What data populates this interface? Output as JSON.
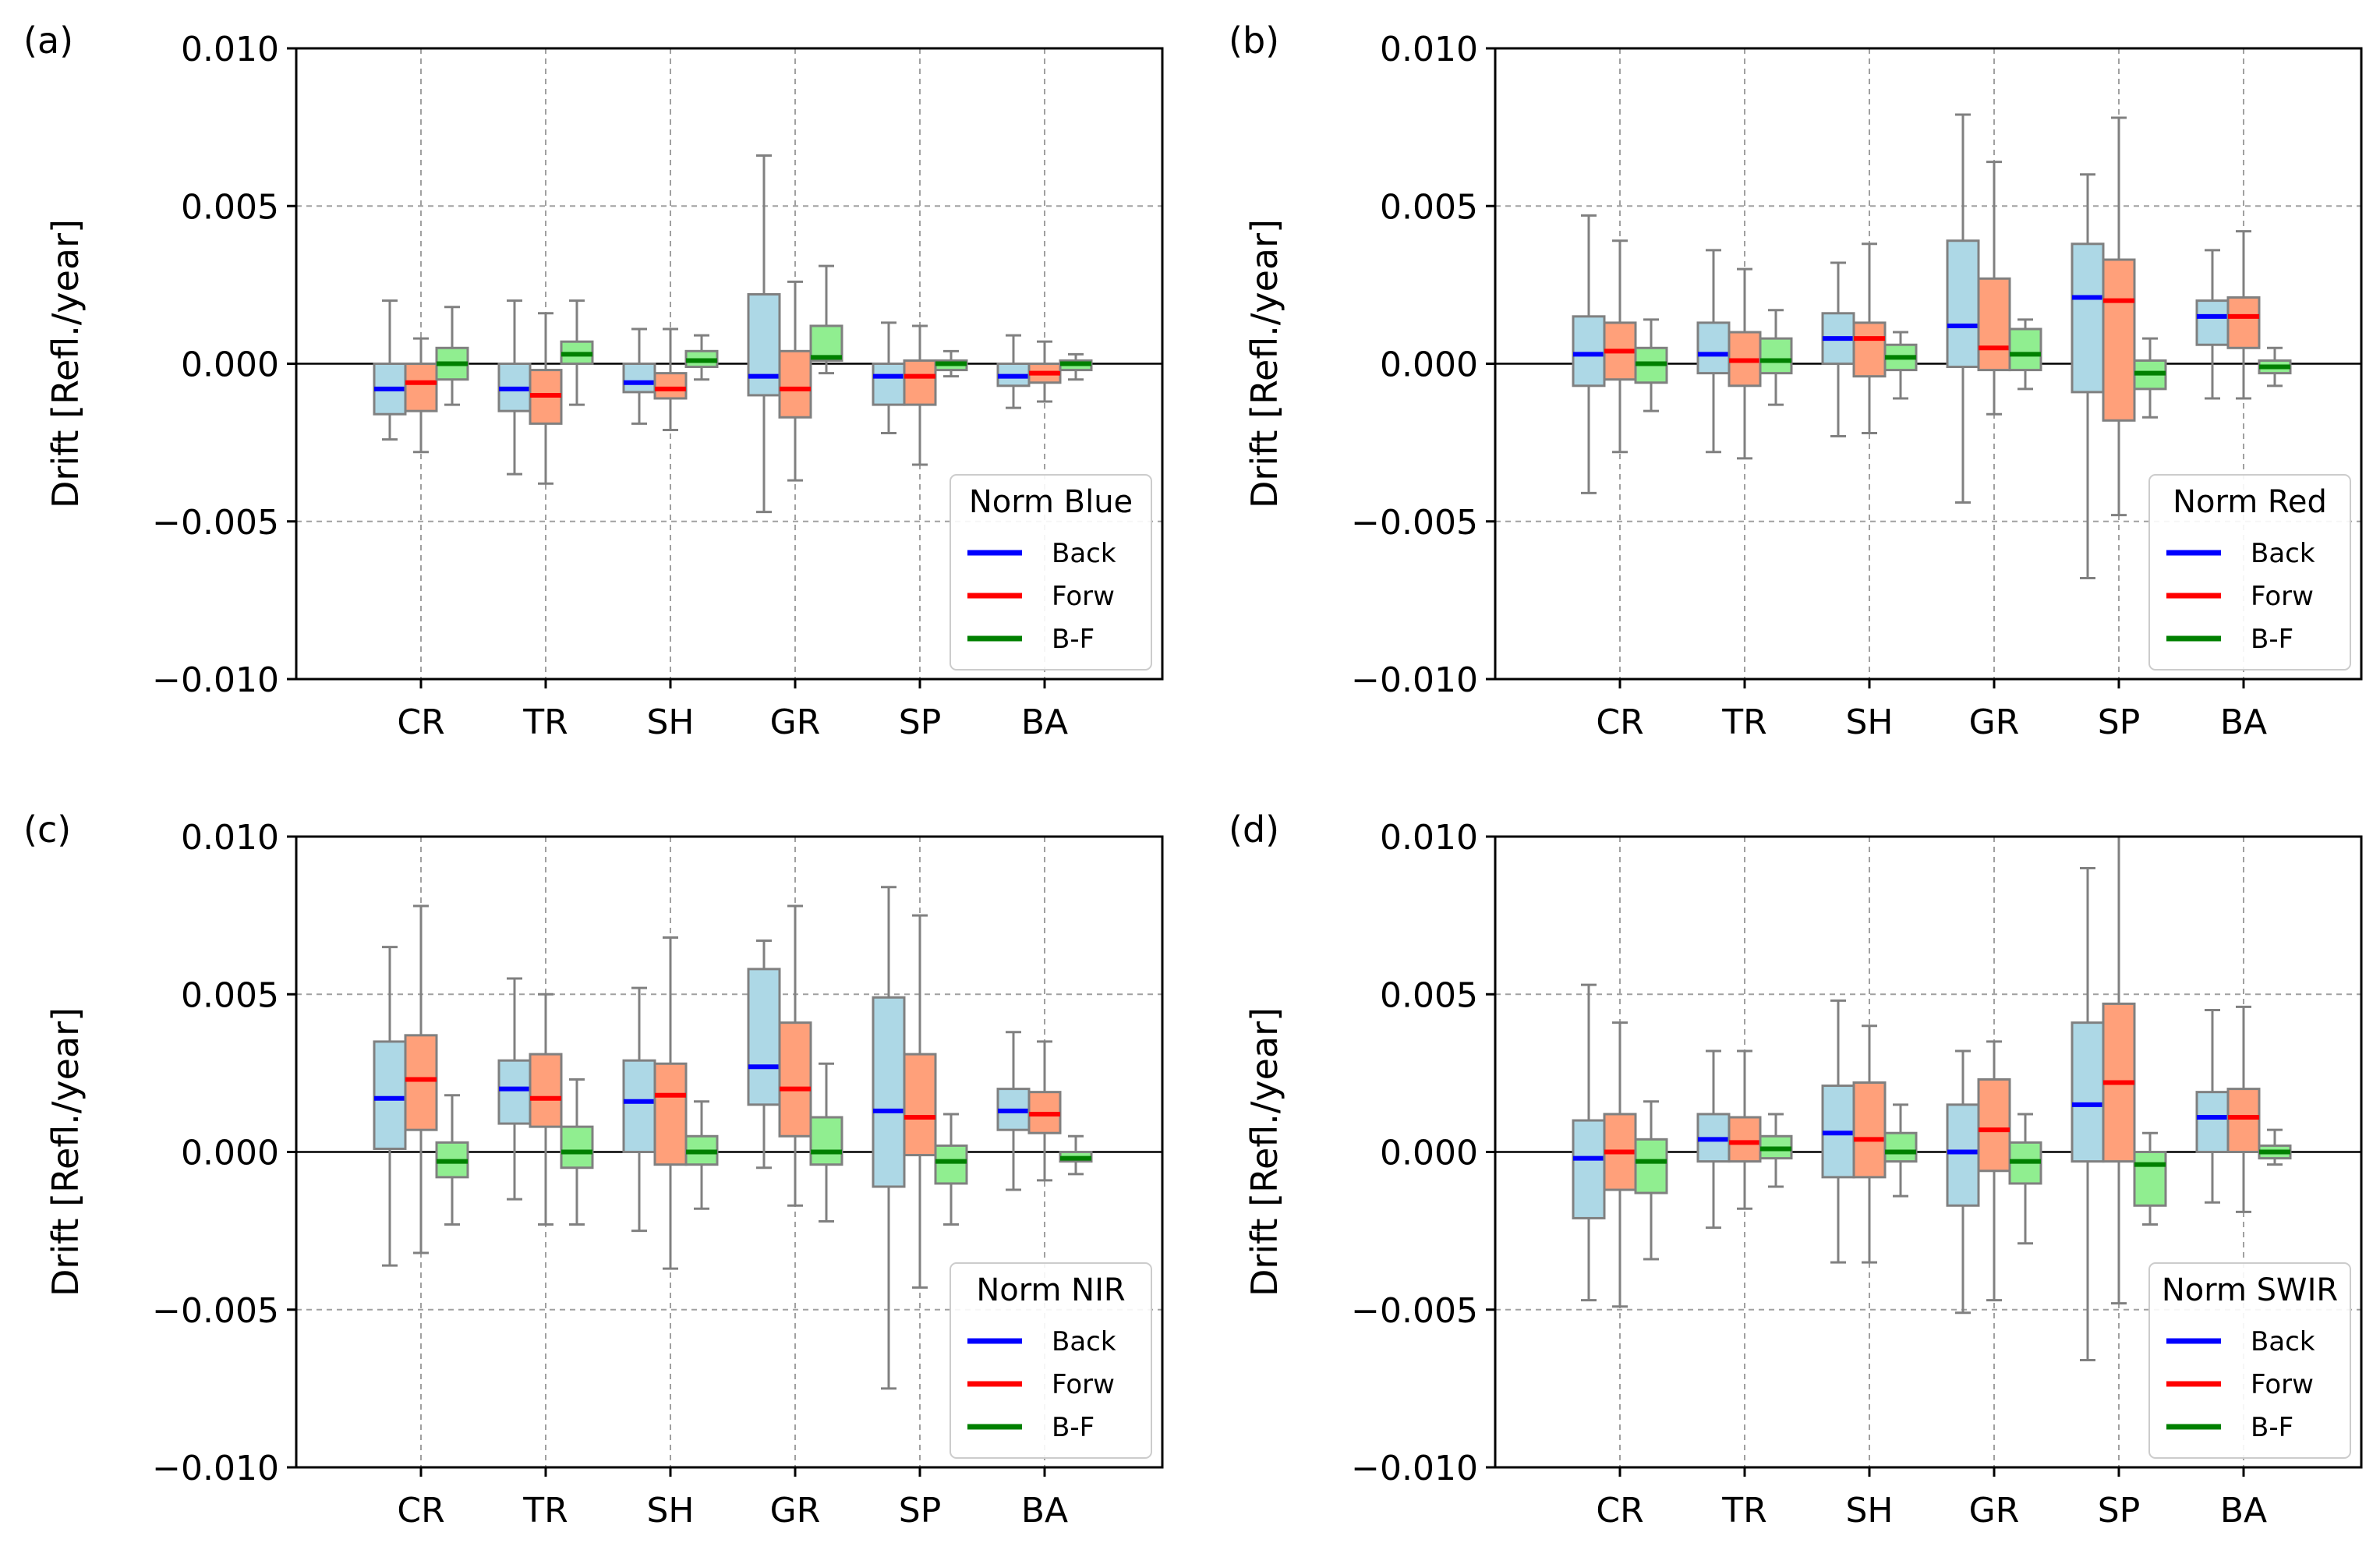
{
  "figure": {
    "categories": [
      "CR",
      "TR",
      "SH",
      "GR",
      "SP",
      "BA"
    ],
    "series_names": [
      "Back",
      "Forw",
      "B-F"
    ]
  },
  "colors": {
    "back_fill": "#add8e6",
    "back_median": "#0000ff",
    "forw_fill": "#ffa07a",
    "forw_median": "#ff0000",
    "bf_fill": "#90ee90",
    "bf_median": "#008000",
    "whisker": "#808080",
    "grid": "#a0a0a0",
    "axis": "#000000"
  },
  "chart_data": [
    {
      "type": "box",
      "panel_label": "(a)",
      "legend_title": "Norm Blue",
      "ylabel": "Drift [Refl./year]",
      "ylim": [
        -0.01,
        0.01
      ],
      "yticks": [
        "0.010",
        "0.005",
        "0.000",
        "−0.005",
        "−0.010"
      ],
      "ytick_values": [
        0.01,
        0.005,
        0.0,
        -0.005,
        -0.01
      ],
      "categories": [
        "CR",
        "TR",
        "SH",
        "GR",
        "SP",
        "BA"
      ],
      "legend_position": "lower-right",
      "series": [
        {
          "name": "Back",
          "boxes": [
            {
              "whislo": -0.0024,
              "q1": -0.0016,
              "med": -0.0008,
              "q3": 0.0,
              "whishi": 0.002
            },
            {
              "whislo": -0.0035,
              "q1": -0.0015,
              "med": -0.0008,
              "q3": 0.0,
              "whishi": 0.002
            },
            {
              "whislo": -0.0019,
              "q1": -0.0009,
              "med": -0.0006,
              "q3": 0.0,
              "whishi": 0.0011
            },
            {
              "whislo": -0.0047,
              "q1": -0.001,
              "med": -0.0004,
              "q3": 0.0022,
              "whishi": 0.0066
            },
            {
              "whislo": -0.0022,
              "q1": -0.0013,
              "med": -0.0004,
              "q3": 0.0,
              "whishi": 0.0013
            },
            {
              "whislo": -0.0014,
              "q1": -0.0007,
              "med": -0.0004,
              "q3": 0.0,
              "whishi": 0.0009
            }
          ]
        },
        {
          "name": "Forw",
          "boxes": [
            {
              "whislo": -0.0028,
              "q1": -0.0015,
              "med": -0.0006,
              "q3": 0.0,
              "whishi": 0.0008
            },
            {
              "whislo": -0.0038,
              "q1": -0.0019,
              "med": -0.001,
              "q3": -0.0002,
              "whishi": 0.0016
            },
            {
              "whislo": -0.0021,
              "q1": -0.0011,
              "med": -0.0008,
              "q3": -0.0003,
              "whishi": 0.0011
            },
            {
              "whislo": -0.0037,
              "q1": -0.0017,
              "med": -0.0008,
              "q3": 0.0004,
              "whishi": 0.0026
            },
            {
              "whislo": -0.0032,
              "q1": -0.0013,
              "med": -0.0004,
              "q3": 0.0001,
              "whishi": 0.0012
            },
            {
              "whislo": -0.0012,
              "q1": -0.0006,
              "med": -0.0003,
              "q3": 0.0,
              "whishi": 0.0007
            }
          ]
        },
        {
          "name": "B-F",
          "boxes": [
            {
              "whislo": -0.0013,
              "q1": -0.0005,
              "med": 0.0,
              "q3": 0.0005,
              "whishi": 0.0018
            },
            {
              "whislo": -0.0013,
              "q1": 0.0,
              "med": 0.0003,
              "q3": 0.0007,
              "whishi": 0.002
            },
            {
              "whislo": -0.0005,
              "q1": -0.0001,
              "med": 0.0001,
              "q3": 0.0004,
              "whishi": 0.0009
            },
            {
              "whislo": -0.0003,
              "q1": 0.0001,
              "med": 0.0002,
              "q3": 0.0012,
              "whishi": 0.0031
            },
            {
              "whislo": -0.0004,
              "q1": -0.0002,
              "med": 0.0,
              "q3": 0.0001,
              "whishi": 0.0004
            },
            {
              "whislo": -0.0005,
              "q1": -0.0002,
              "med": 0.0,
              "q3": 0.0001,
              "whishi": 0.0003
            }
          ]
        }
      ]
    },
    {
      "type": "box",
      "panel_label": "(b)",
      "legend_title": "Norm Red",
      "ylabel": "Drift [Refl./year]",
      "ylim": [
        -0.01,
        0.01
      ],
      "yticks": [
        "0.010",
        "0.005",
        "0.000",
        "−0.005",
        "−0.010"
      ],
      "ytick_values": [
        0.01,
        0.005,
        0.0,
        -0.005,
        -0.01
      ],
      "categories": [
        "CR",
        "TR",
        "SH",
        "GR",
        "SP",
        "BA"
      ],
      "legend_position": "lower-right",
      "series": [
        {
          "name": "Back",
          "boxes": [
            {
              "whislo": -0.0041,
              "q1": -0.0007,
              "med": 0.0003,
              "q3": 0.0015,
              "whishi": 0.0047
            },
            {
              "whislo": -0.0028,
              "q1": -0.0003,
              "med": 0.0003,
              "q3": 0.0013,
              "whishi": 0.0036
            },
            {
              "whislo": -0.0023,
              "q1": 0.0,
              "med": 0.0008,
              "q3": 0.0016,
              "whishi": 0.0032
            },
            {
              "whislo": -0.0044,
              "q1": -0.0001,
              "med": 0.0012,
              "q3": 0.0039,
              "whishi": 0.0079
            },
            {
              "whislo": -0.0068,
              "q1": -0.0009,
              "med": 0.0021,
              "q3": 0.0038,
              "whishi": 0.006
            },
            {
              "whislo": -0.0011,
              "q1": 0.0006,
              "med": 0.0015,
              "q3": 0.002,
              "whishi": 0.0036
            }
          ]
        },
        {
          "name": "Forw",
          "boxes": [
            {
              "whislo": -0.0028,
              "q1": -0.0005,
              "med": 0.0004,
              "q3": 0.0013,
              "whishi": 0.0039
            },
            {
              "whislo": -0.003,
              "q1": -0.0007,
              "med": 0.0001,
              "q3": 0.001,
              "whishi": 0.003
            },
            {
              "whislo": -0.0022,
              "q1": -0.0004,
              "med": 0.0008,
              "q3": 0.0013,
              "whishi": 0.0038
            },
            {
              "whislo": -0.0016,
              "q1": -0.0002,
              "med": 0.0005,
              "q3": 0.0027,
              "whishi": 0.0064
            },
            {
              "whislo": -0.0048,
              "q1": -0.0018,
              "med": 0.002,
              "q3": 0.0033,
              "whishi": 0.0078
            },
            {
              "whislo": -0.0011,
              "q1": 0.0005,
              "med": 0.0015,
              "q3": 0.0021,
              "whishi": 0.0042
            }
          ]
        },
        {
          "name": "B-F",
          "boxes": [
            {
              "whislo": -0.0015,
              "q1": -0.0006,
              "med": 0.0,
              "q3": 0.0005,
              "whishi": 0.0014
            },
            {
              "whislo": -0.0013,
              "q1": -0.0003,
              "med": 0.0001,
              "q3": 0.0008,
              "whishi": 0.0017
            },
            {
              "whislo": -0.0011,
              "q1": -0.0002,
              "med": 0.0002,
              "q3": 0.0006,
              "whishi": 0.001
            },
            {
              "whislo": -0.0008,
              "q1": -0.0002,
              "med": 0.0003,
              "q3": 0.0011,
              "whishi": 0.0014
            },
            {
              "whislo": -0.0017,
              "q1": -0.0008,
              "med": -0.0003,
              "q3": 0.0001,
              "whishi": 0.0008
            },
            {
              "whislo": -0.0007,
              "q1": -0.0003,
              "med": -0.0001,
              "q3": 0.0001,
              "whishi": 0.0005
            }
          ]
        }
      ]
    },
    {
      "type": "box",
      "panel_label": "(c)",
      "legend_title": "Norm NIR",
      "ylabel": "Drift [Refl./year]",
      "ylim": [
        -0.01,
        0.01
      ],
      "yticks": [
        "0.010",
        "0.005",
        "0.000",
        "−0.005",
        "−0.010"
      ],
      "ytick_values": [
        0.01,
        0.005,
        0.0,
        -0.005,
        -0.01
      ],
      "categories": [
        "CR",
        "TR",
        "SH",
        "GR",
        "SP",
        "BA"
      ],
      "legend_position": "lower-right",
      "series": [
        {
          "name": "Back",
          "boxes": [
            {
              "whislo": -0.0036,
              "q1": 0.0001,
              "med": 0.0017,
              "q3": 0.0035,
              "whishi": 0.0065
            },
            {
              "whislo": -0.0015,
              "q1": 0.0009,
              "med": 0.002,
              "q3": 0.0029,
              "whishi": 0.0055
            },
            {
              "whislo": -0.0025,
              "q1": 0.0,
              "med": 0.0016,
              "q3": 0.0029,
              "whishi": 0.0052
            },
            {
              "whislo": -0.0005,
              "q1": 0.0015,
              "med": 0.0027,
              "q3": 0.0058,
              "whishi": 0.0067
            },
            {
              "whislo": -0.0075,
              "q1": -0.0011,
              "med": 0.0013,
              "q3": 0.0049,
              "whishi": 0.0084
            },
            {
              "whislo": -0.0012,
              "q1": 0.0007,
              "med": 0.0013,
              "q3": 0.002,
              "whishi": 0.0038
            }
          ]
        },
        {
          "name": "Forw",
          "boxes": [
            {
              "whislo": -0.0032,
              "q1": 0.0007,
              "med": 0.0023,
              "q3": 0.0037,
              "whishi": 0.0078
            },
            {
              "whislo": -0.0023,
              "q1": 0.0008,
              "med": 0.0017,
              "q3": 0.0031,
              "whishi": 0.005
            },
            {
              "whislo": -0.0037,
              "q1": -0.0004,
              "med": 0.0018,
              "q3": 0.0028,
              "whishi": 0.0068
            },
            {
              "whislo": -0.0017,
              "q1": 0.0005,
              "med": 0.002,
              "q3": 0.0041,
              "whishi": 0.0078
            },
            {
              "whislo": -0.0043,
              "q1": -0.0001,
              "med": 0.0011,
              "q3": 0.0031,
              "whishi": 0.0075
            },
            {
              "whislo": -0.0009,
              "q1": 0.0006,
              "med": 0.0012,
              "q3": 0.0019,
              "whishi": 0.0035
            }
          ]
        },
        {
          "name": "B-F",
          "boxes": [
            {
              "whislo": -0.0023,
              "q1": -0.0008,
              "med": -0.0003,
              "q3": 0.0003,
              "whishi": 0.0018
            },
            {
              "whislo": -0.0023,
              "q1": -0.0005,
              "med": 0.0,
              "q3": 0.0008,
              "whishi": 0.0023
            },
            {
              "whislo": -0.0018,
              "q1": -0.0004,
              "med": 0.0,
              "q3": 0.0005,
              "whishi": 0.0016
            },
            {
              "whislo": -0.0022,
              "q1": -0.0004,
              "med": 0.0,
              "q3": 0.0011,
              "whishi": 0.0028
            },
            {
              "whislo": -0.0023,
              "q1": -0.001,
              "med": -0.0003,
              "q3": 0.0002,
              "whishi": 0.0012
            },
            {
              "whislo": -0.0007,
              "q1": -0.0003,
              "med": -0.0002,
              "q3": 0.0,
              "whishi": 0.0005
            }
          ]
        }
      ]
    },
    {
      "type": "box",
      "panel_label": "(d)",
      "legend_title": "Norm SWIR",
      "ylabel": "Drift [Refl./year]",
      "ylim": [
        -0.01,
        0.01
      ],
      "yticks": [
        "0.010",
        "0.005",
        "0.000",
        "−0.005",
        "−0.010"
      ],
      "ytick_values": [
        0.01,
        0.005,
        0.0,
        -0.005,
        -0.01
      ],
      "categories": [
        "CR",
        "TR",
        "SH",
        "GR",
        "SP",
        "BA"
      ],
      "legend_position": "lower-right",
      "series": [
        {
          "name": "Back",
          "boxes": [
            {
              "whislo": -0.0047,
              "q1": -0.0021,
              "med": -0.0002,
              "q3": 0.001,
              "whishi": 0.0053
            },
            {
              "whislo": -0.0024,
              "q1": -0.0003,
              "med": 0.0004,
              "q3": 0.0012,
              "whishi": 0.0032
            },
            {
              "whislo": -0.0035,
              "q1": -0.0008,
              "med": 0.0006,
              "q3": 0.0021,
              "whishi": 0.0048
            },
            {
              "whislo": -0.0051,
              "q1": -0.0017,
              "med": 0.0,
              "q3": 0.0015,
              "whishi": 0.0032
            },
            {
              "whislo": -0.0066,
              "q1": -0.0003,
              "med": 0.0015,
              "q3": 0.0041,
              "whishi": 0.009
            },
            {
              "whislo": -0.0016,
              "q1": 0.0,
              "med": 0.0011,
              "q3": 0.0019,
              "whishi": 0.0045
            }
          ]
        },
        {
          "name": "Forw",
          "boxes": [
            {
              "whislo": -0.0049,
              "q1": -0.0012,
              "med": 0.0,
              "q3": 0.0012,
              "whishi": 0.0041
            },
            {
              "whislo": -0.0018,
              "q1": -0.0003,
              "med": 0.0003,
              "q3": 0.0011,
              "whishi": 0.0032
            },
            {
              "whislo": -0.0035,
              "q1": -0.0008,
              "med": 0.0004,
              "q3": 0.0022,
              "whishi": 0.004
            },
            {
              "whislo": -0.0047,
              "q1": -0.0006,
              "med": 0.0007,
              "q3": 0.0023,
              "whishi": 0.0035
            },
            {
              "whislo": -0.0048,
              "q1": -0.0003,
              "med": 0.0022,
              "q3": 0.0047,
              "whishi": 0.01
            },
            {
              "whislo": -0.0019,
              "q1": 0.0,
              "med": 0.0011,
              "q3": 0.002,
              "whishi": 0.0046
            }
          ]
        },
        {
          "name": "B-F",
          "boxes": [
            {
              "whislo": -0.0034,
              "q1": -0.0013,
              "med": -0.0003,
              "q3": 0.0004,
              "whishi": 0.0016
            },
            {
              "whislo": -0.0011,
              "q1": -0.0002,
              "med": 0.0001,
              "q3": 0.0005,
              "whishi": 0.0012
            },
            {
              "whislo": -0.0014,
              "q1": -0.0003,
              "med": 0.0,
              "q3": 0.0006,
              "whishi": 0.0015
            },
            {
              "whislo": -0.0029,
              "q1": -0.001,
              "med": -0.0003,
              "q3": 0.0003,
              "whishi": 0.0012
            },
            {
              "whislo": -0.0023,
              "q1": -0.0017,
              "med": -0.0004,
              "q3": 0.0,
              "whishi": 0.0006
            },
            {
              "whislo": -0.0004,
              "q1": -0.0002,
              "med": 0.0,
              "q3": 0.0002,
              "whishi": 0.0007
            }
          ]
        }
      ]
    }
  ]
}
